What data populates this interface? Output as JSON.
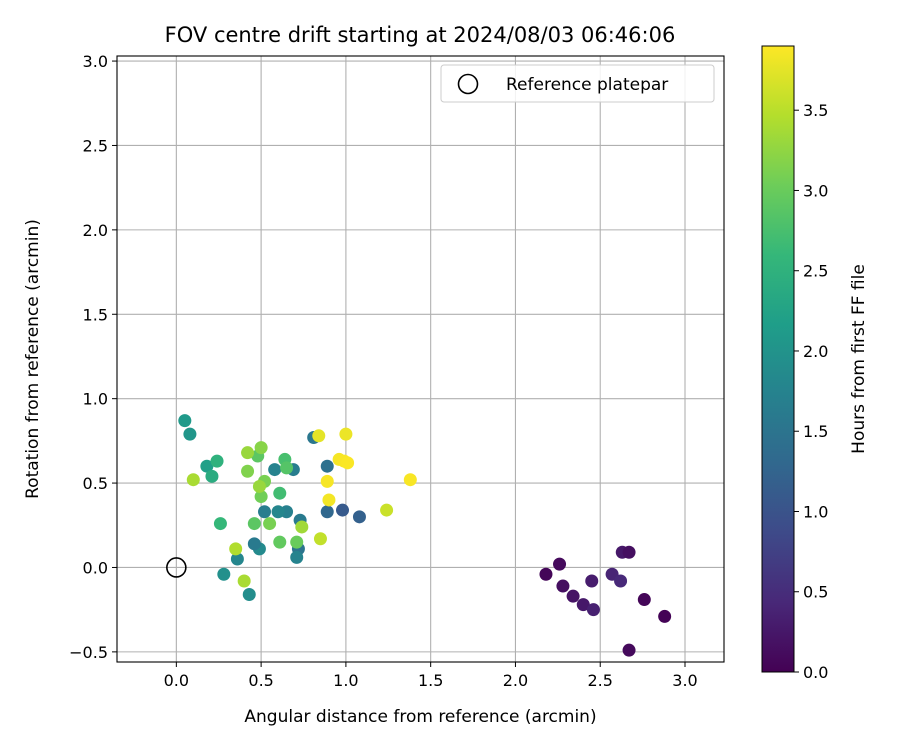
{
  "chart_data": {
    "type": "scatter",
    "title": "FOV centre drift starting at 2024/08/03 06:46:06",
    "xlabel": "Angular distance from reference (arcmin)",
    "ylabel": "Rotation from reference (arcmin)",
    "xlim": [
      -0.35,
      3.23
    ],
    "ylim": [
      -0.56,
      3.03
    ],
    "xticks": [
      0.0,
      0.5,
      1.0,
      1.5,
      2.0,
      2.5,
      3.0
    ],
    "xtick_labels": [
      "0.0",
      "0.5",
      "1.0",
      "1.5",
      "2.0",
      "2.5",
      "3.0"
    ],
    "yticks": [
      -0.5,
      0.0,
      0.5,
      1.0,
      1.5,
      2.0,
      2.5,
      3.0
    ],
    "ytick_labels": [
      "−0.5",
      "0.0",
      "0.5",
      "1.0",
      "1.5",
      "2.0",
      "2.5",
      "3.0"
    ],
    "grid": true,
    "legend": {
      "placement": "top-right",
      "entries": [
        {
          "label": "Reference platepar",
          "marker": "open-circle"
        }
      ]
    },
    "reference_point": {
      "x": 0.0,
      "y": 0.0
    },
    "colorbar": {
      "label": "Hours from first FF file",
      "colormap": "viridis",
      "range": [
        0.0,
        3.9
      ],
      "ticks": [
        0.0,
        0.5,
        1.0,
        1.5,
        2.0,
        2.5,
        3.0,
        3.5
      ],
      "tick_labels": [
        "0.0",
        "0.5",
        "1.0",
        "1.5",
        "2.0",
        "2.5",
        "3.0",
        "3.5"
      ]
    },
    "points": [
      {
        "x": 2.18,
        "y": -0.04,
        "hours": 0.05
      },
      {
        "x": 2.26,
        "y": 0.02,
        "hours": 0.1
      },
      {
        "x": 2.28,
        "y": -0.11,
        "hours": 0.15
      },
      {
        "x": 2.34,
        "y": -0.17,
        "hours": 0.2
      },
      {
        "x": 2.4,
        "y": -0.22,
        "hours": 0.25
      },
      {
        "x": 2.45,
        "y": -0.08,
        "hours": 0.3
      },
      {
        "x": 2.46,
        "y": -0.25,
        "hours": 0.35
      },
      {
        "x": 2.57,
        "y": -0.04,
        "hours": 0.4
      },
      {
        "x": 2.62,
        "y": -0.08,
        "hours": 0.45
      },
      {
        "x": 2.63,
        "y": 0.09,
        "hours": 0.25
      },
      {
        "x": 2.67,
        "y": 0.09,
        "hours": 0.15
      },
      {
        "x": 2.67,
        "y": -0.49,
        "hours": 0.1
      },
      {
        "x": 2.76,
        "y": -0.19,
        "hours": 0.05
      },
      {
        "x": 2.88,
        "y": -0.29,
        "hours": 0.02
      },
      {
        "x": 1.08,
        "y": 0.3,
        "hours": 1.2
      },
      {
        "x": 0.98,
        "y": 0.34,
        "hours": 1.1
      },
      {
        "x": 0.89,
        "y": 0.33,
        "hours": 1.3
      },
      {
        "x": 0.89,
        "y": 0.6,
        "hours": 1.45
      },
      {
        "x": 0.81,
        "y": 0.77,
        "hours": 1.55
      },
      {
        "x": 0.73,
        "y": 0.28,
        "hours": 1.6
      },
      {
        "x": 0.72,
        "y": 0.11,
        "hours": 1.5
      },
      {
        "x": 0.71,
        "y": 0.06,
        "hours": 1.75
      },
      {
        "x": 0.69,
        "y": 0.58,
        "hours": 1.65
      },
      {
        "x": 0.65,
        "y": 0.33,
        "hours": 1.7
      },
      {
        "x": 0.6,
        "y": 0.33,
        "hours": 1.8
      },
      {
        "x": 0.58,
        "y": 0.58,
        "hours": 1.75
      },
      {
        "x": 0.52,
        "y": 0.33,
        "hours": 1.65
      },
      {
        "x": 0.49,
        "y": 0.11,
        "hours": 1.85
      },
      {
        "x": 0.46,
        "y": 0.14,
        "hours": 1.6
      },
      {
        "x": 0.43,
        "y": -0.16,
        "hours": 1.9
      },
      {
        "x": 0.36,
        "y": 0.05,
        "hours": 1.8
      },
      {
        "x": 0.28,
        "y": -0.04,
        "hours": 1.95
      },
      {
        "x": 0.08,
        "y": 0.79,
        "hours": 2.05
      },
      {
        "x": 0.05,
        "y": 0.87,
        "hours": 2.1
      },
      {
        "x": 0.18,
        "y": 0.6,
        "hours": 2.2
      },
      {
        "x": 0.21,
        "y": 0.54,
        "hours": 2.4
      },
      {
        "x": 0.24,
        "y": 0.63,
        "hours": 2.5
      },
      {
        "x": 0.26,
        "y": 0.26,
        "hours": 2.6
      },
      {
        "x": 0.61,
        "y": 0.44,
        "hours": 2.7
      },
      {
        "x": 0.64,
        "y": 0.64,
        "hours": 2.75
      },
      {
        "x": 0.65,
        "y": 0.59,
        "hours": 2.85
      },
      {
        "x": 0.48,
        "y": 0.66,
        "hours": 2.9
      },
      {
        "x": 0.46,
        "y": 0.26,
        "hours": 2.9
      },
      {
        "x": 0.61,
        "y": 0.15,
        "hours": 2.95
      },
      {
        "x": 0.71,
        "y": 0.15,
        "hours": 3.0
      },
      {
        "x": 0.5,
        "y": 0.42,
        "hours": 3.05
      },
      {
        "x": 0.52,
        "y": 0.51,
        "hours": 3.1
      },
      {
        "x": 0.55,
        "y": 0.26,
        "hours": 3.1
      },
      {
        "x": 0.42,
        "y": 0.57,
        "hours": 3.15
      },
      {
        "x": 0.5,
        "y": 0.71,
        "hours": 3.2
      },
      {
        "x": 0.42,
        "y": 0.68,
        "hours": 3.3
      },
      {
        "x": 0.49,
        "y": 0.48,
        "hours": 3.3
      },
      {
        "x": 0.74,
        "y": 0.24,
        "hours": 3.35
      },
      {
        "x": 0.1,
        "y": 0.52,
        "hours": 3.4
      },
      {
        "x": 0.35,
        "y": 0.11,
        "hours": 3.45
      },
      {
        "x": 0.4,
        "y": -0.08,
        "hours": 3.4
      },
      {
        "x": 0.85,
        "y": 0.17,
        "hours": 3.55
      },
      {
        "x": 1.24,
        "y": 0.34,
        "hours": 3.6
      },
      {
        "x": 0.84,
        "y": 0.78,
        "hours": 3.75
      },
      {
        "x": 1.0,
        "y": 0.79,
        "hours": 3.8
      },
      {
        "x": 0.96,
        "y": 0.64,
        "hours": 3.85
      },
      {
        "x": 0.99,
        "y": 0.63,
        "hours": 3.87
      },
      {
        "x": 1.01,
        "y": 0.62,
        "hours": 3.88
      },
      {
        "x": 0.89,
        "y": 0.51,
        "hours": 3.86
      },
      {
        "x": 0.9,
        "y": 0.4,
        "hours": 3.84
      },
      {
        "x": 1.38,
        "y": 0.52,
        "hours": 3.87
      }
    ]
  }
}
